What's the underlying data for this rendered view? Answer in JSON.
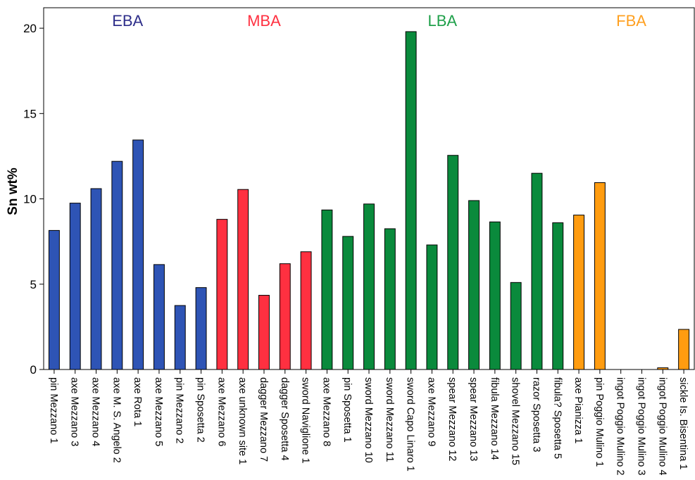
{
  "chart_data": {
    "type": "bar",
    "ylabel": "Sn wt%",
    "xlabel": "",
    "ylim": [
      0,
      21.2
    ],
    "yticks": [
      0,
      5,
      10,
      15,
      20
    ],
    "grid": false,
    "colors": {
      "EBA": "#2e54b5",
      "MBA": "#ff3040",
      "LBA": "#0a8a3c",
      "FBA": "#ff9c10"
    },
    "periods": [
      {
        "name": "EBA",
        "color": "#2e2e8a"
      },
      {
        "name": "MBA",
        "color": "#ff3040"
      },
      {
        "name": "LBA",
        "color": "#1fa04a"
      },
      {
        "name": "FBA",
        "color": "#ffa020"
      }
    ],
    "categories": [
      "pin Mezzano 1",
      "axe Mezzano 3",
      "axe Mezzano 4",
      "axe M. S. Angelo 2",
      "axe Rota 1",
      "axe Mezzano 5",
      "pin Mezzano 2",
      "pin Sposetta 2",
      "axe Mezzano 6",
      "axe unknown site 1",
      "dagger Mezzano 7",
      "dagger Sposetta 4",
      "sword Naviglione 1",
      "axe Mezzano 8",
      "pin Sposetta 1",
      "sword Mezzano 10",
      "sword Mezzano 11",
      "sword Capo Linaro 1",
      "axe Mezzano 9",
      "spear Mezzano 12",
      "spear Mezzano 13",
      "fibula Mezzano 14",
      "shovel Mezzano 15",
      "razor Sposetta 3",
      "fibula? Sposetta 5",
      "axe Pianizza 1",
      "pin Poggio Mulino 1",
      "ingot Poggio Mulino 2",
      "ingot Poggio Mulino 3",
      "ingot Poggio Mulino 4",
      "sickle Is. Bisentina 1"
    ],
    "values": [
      8.15,
      9.75,
      10.6,
      12.2,
      13.45,
      6.15,
      3.75,
      4.8,
      8.8,
      10.55,
      4.35,
      6.2,
      6.9,
      9.35,
      7.8,
      9.7,
      8.25,
      19.8,
      7.3,
      12.55,
      9.9,
      8.65,
      5.1,
      11.5,
      8.6,
      9.05,
      10.95,
      0,
      0,
      0.1,
      2.35
    ],
    "period_of_category": [
      "EBA",
      "EBA",
      "EBA",
      "EBA",
      "EBA",
      "EBA",
      "EBA",
      "EBA",
      "MBA",
      "MBA",
      "MBA",
      "MBA",
      "MBA",
      "LBA",
      "LBA",
      "LBA",
      "LBA",
      "LBA",
      "LBA",
      "LBA",
      "LBA",
      "LBA",
      "LBA",
      "LBA",
      "LBA",
      "FBA",
      "FBA",
      "FBA",
      "FBA",
      "FBA",
      "FBA"
    ]
  }
}
